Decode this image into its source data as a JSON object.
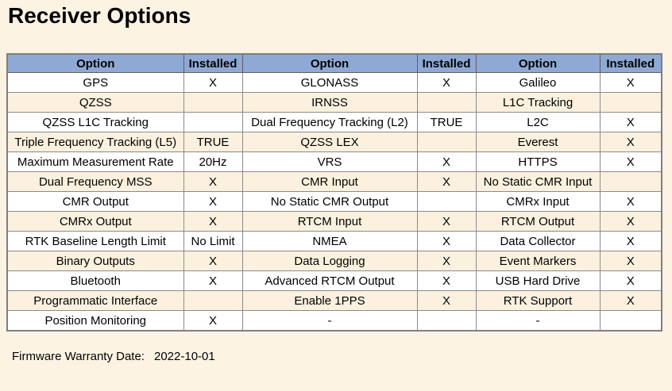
{
  "page": {
    "title": "Receiver Options"
  },
  "footer": {
    "label": "Firmware Warranty Date:",
    "value": "2022-10-01"
  },
  "colors": {
    "page_background": "#FDF3E3",
    "header_background": "#8EA9D4",
    "row_white": "#FFFFFF",
    "row_cream": "#FCF1DE",
    "border": "#7F7F7F",
    "text": "#000000"
  },
  "table": {
    "headers": [
      "Option",
      "Installed",
      "Option",
      "Installed",
      "Option",
      "Installed"
    ],
    "rows": [
      [
        "GPS",
        "X",
        "GLONASS",
        "X",
        "Galileo",
        "X"
      ],
      [
        "QZSS",
        "",
        "IRNSS",
        "",
        "L1C Tracking",
        ""
      ],
      [
        "QZSS L1C Tracking",
        "",
        "Dual Frequency Tracking (L2)",
        "TRUE",
        "L2C",
        "X"
      ],
      [
        "Triple Frequency Tracking (L5)",
        "TRUE",
        "QZSS LEX",
        "",
        "Everest",
        "X"
      ],
      [
        "Maximum Measurement Rate",
        "20Hz",
        "VRS",
        "X",
        "HTTPS",
        "X"
      ],
      [
        "Dual Frequency MSS",
        "X",
        "CMR Input",
        "X",
        "No Static CMR Input",
        ""
      ],
      [
        "CMR Output",
        "X",
        "No Static CMR Output",
        "",
        "CMRx Input",
        "X"
      ],
      [
        "CMRx Output",
        "X",
        "RTCM Input",
        "X",
        "RTCM Output",
        "X"
      ],
      [
        "RTK Baseline Length Limit",
        "No Limit",
        "NMEA",
        "X",
        "Data Collector",
        "X"
      ],
      [
        "Binary Outputs",
        "X",
        "Data Logging",
        "X",
        "Event Markers",
        "X"
      ],
      [
        "Bluetooth",
        "X",
        "Advanced RTCM Output",
        "X",
        "USB Hard Drive",
        "X"
      ],
      [
        "Programmatic Interface",
        "",
        "Enable 1PPS",
        "X",
        "RTK Support",
        "X"
      ],
      [
        "Position Monitoring",
        "X",
        "-",
        "",
        "-",
        ""
      ]
    ]
  }
}
